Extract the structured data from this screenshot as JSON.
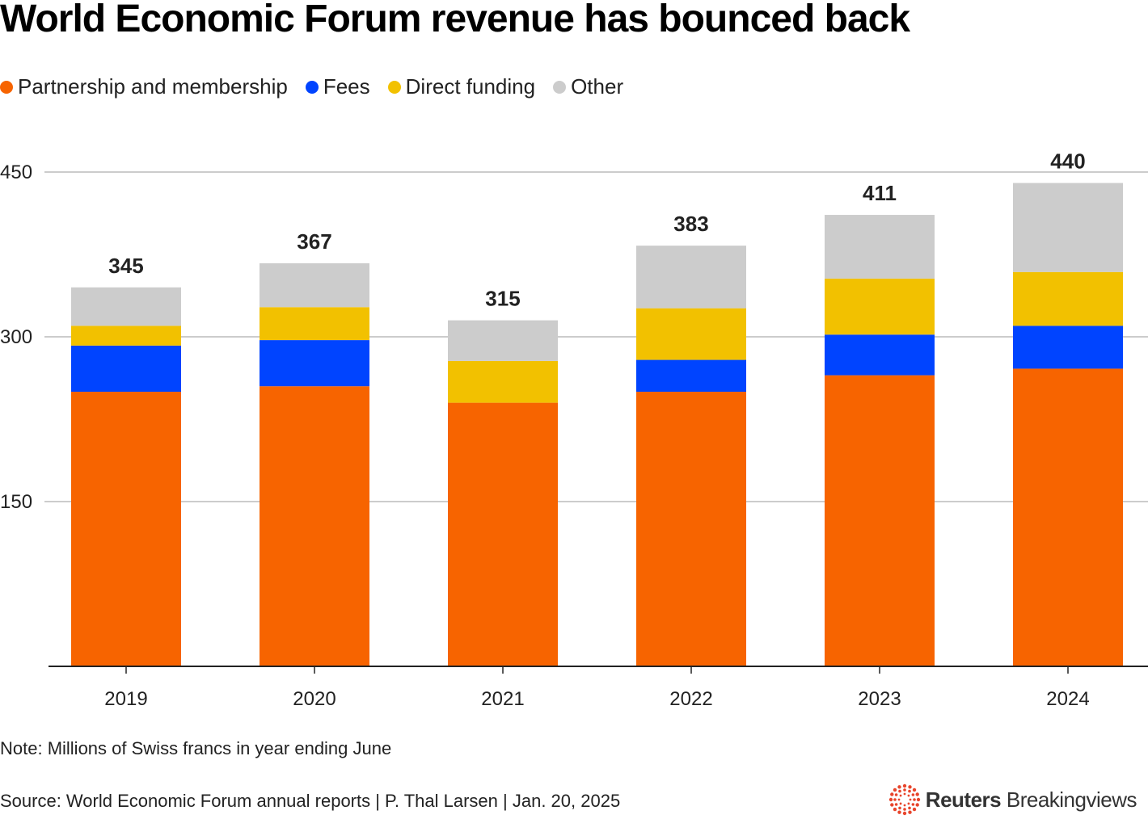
{
  "title": "World Economic Forum revenue has bounced back",
  "note": "Note: Millions of Swiss francs in year ending June",
  "source": "Source: World Economic Forum annual reports | P. Thal Larsen | Jan. 20, 2025",
  "logo": {
    "brand": "Reuters",
    "product": "Breakingviews"
  },
  "chart_data": {
    "type": "bar",
    "stacked": true,
    "title": "World Economic Forum revenue has bounced back",
    "xlabel": "",
    "ylabel": "",
    "ylim": [
      0,
      450
    ],
    "yticks": [
      150,
      300,
      450
    ],
    "grid": true,
    "legend_position": "top-left",
    "categories": [
      "2019",
      "2020",
      "2021",
      "2022",
      "2023",
      "2024"
    ],
    "totals": [
      345,
      367,
      315,
      383,
      411,
      440
    ],
    "series": [
      {
        "name": "Partnership and membership",
        "color": "#f76400",
        "values": [
          250,
          255,
          240,
          250,
          265,
          271
        ]
      },
      {
        "name": "Fees",
        "color": "#0044ff",
        "values": [
          42,
          42,
          0,
          29,
          37,
          39
        ]
      },
      {
        "name": "Direct funding",
        "color": "#f2c100",
        "values": [
          18,
          30,
          38,
          47,
          51,
          49
        ]
      },
      {
        "name": "Other",
        "color": "#cccccc",
        "values": [
          35,
          40,
          37,
          57,
          58,
          81
        ]
      }
    ]
  }
}
